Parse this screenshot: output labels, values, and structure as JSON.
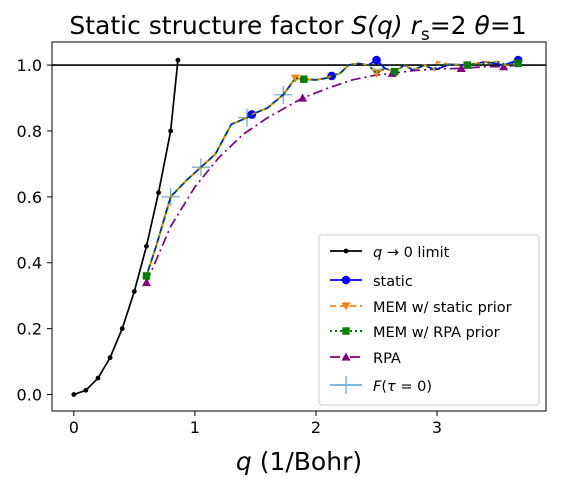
{
  "chart_data": {
    "type": "line",
    "title_plain": "Static structure factor ",
    "title_italic": "S(q)",
    "title_rs_italic": "r",
    "title_rs_sub": "s",
    "title_rs_value": "=2 ",
    "title_theta_italic": "θ",
    "title_theta_value": "=1",
    "xlabel_italic": "q",
    "xlabel_rest": " (1/Bohr)",
    "ylabel": "",
    "xlim": [
      -0.18,
      3.9
    ],
    "ylim": [
      -0.05,
      1.07
    ],
    "xticks": [
      0,
      1,
      2,
      3
    ],
    "yticks": [
      0.0,
      0.2,
      0.4,
      0.6,
      0.8,
      1.0
    ],
    "xtick_labels": [
      "0",
      "1",
      "2",
      "3"
    ],
    "ytick_labels": [
      "0.0",
      "0.2",
      "0.4",
      "0.6",
      "0.8",
      "1.0"
    ],
    "reference_line": {
      "y": 1.0,
      "color": "#000000"
    },
    "grid": false,
    "legend_position": "lower-right",
    "series": [
      {
        "key": "limit",
        "legend": "q → 0 limit",
        "color": "#000000",
        "dash": "",
        "marker": "dot",
        "x": [
          0.0,
          0.1,
          0.2,
          0.3,
          0.4,
          0.5,
          0.6,
          0.7,
          0.8,
          0.86
        ],
        "y": [
          0.0,
          0.013,
          0.05,
          0.112,
          0.2,
          0.313,
          0.45,
          0.613,
          0.8,
          1.015
        ]
      },
      {
        "key": "static",
        "legend": "static",
        "color": "#0000ff",
        "dash": "",
        "marker": "circle",
        "marker_idx": [
          8,
          15,
          20,
          31
        ],
        "x": [
          0.6,
          0.68,
          0.8,
          0.93,
          1.05,
          1.17,
          1.3,
          1.43,
          1.47,
          1.6,
          1.73,
          1.83,
          1.9,
          2.0,
          2.08,
          2.13,
          2.2,
          2.27,
          2.35,
          2.43,
          2.5,
          2.57,
          2.65,
          2.73,
          2.8,
          2.9,
          2.98,
          3.1,
          3.25,
          3.4,
          3.55,
          3.67
        ],
        "y": [
          0.36,
          0.45,
          0.6,
          0.65,
          0.69,
          0.73,
          0.82,
          0.84,
          0.85,
          0.87,
          0.91,
          0.96,
          0.957,
          0.955,
          0.96,
          0.967,
          0.975,
          1.0,
          1.005,
          1.0,
          1.015,
          0.99,
          0.98,
          1.0,
          0.985,
          1.0,
          0.985,
          1.002,
          1.0,
          1.01,
          1.0,
          1.015
        ]
      },
      {
        "key": "mem_static",
        "legend": "MEM w/ static prior",
        "color": "#ff7f0e",
        "dash": "6,4",
        "marker": "triangle-down",
        "marker_idx": [
          11,
          20,
          29,
          34
        ],
        "x": [
          0.6,
          0.68,
          0.8,
          0.93,
          1.05,
          1.17,
          1.3,
          1.43,
          1.47,
          1.6,
          1.73,
          1.83,
          1.9,
          2.0,
          2.08,
          2.13,
          2.2,
          2.27,
          2.35,
          2.43,
          2.5,
          2.57,
          2.65,
          2.73,
          2.8,
          2.9,
          2.98,
          3.0,
          3.1,
          3.25,
          3.4,
          3.5,
          3.55,
          3.6,
          3.67
        ],
        "y": [
          0.36,
          0.45,
          0.6,
          0.65,
          0.69,
          0.73,
          0.82,
          0.84,
          0.85,
          0.87,
          0.91,
          0.96,
          0.957,
          0.955,
          0.96,
          0.967,
          0.975,
          1.0,
          1.005,
          1.0,
          0.975,
          0.99,
          0.98,
          1.0,
          0.985,
          1.0,
          0.985,
          1.01,
          1.002,
          1.0,
          1.01,
          1.01,
          1.0,
          1.0,
          1.005
        ]
      },
      {
        "key": "mem_rpa",
        "legend": "MEM w/ RPA prior",
        "color": "#008000",
        "dash": "2,3",
        "marker": "square",
        "marker_idx": [
          0,
          12,
          22,
          29,
          33
        ],
        "x": [
          0.6,
          0.68,
          0.8,
          0.93,
          1.05,
          1.17,
          1.3,
          1.43,
          1.47,
          1.6,
          1.73,
          1.83,
          1.9,
          2.0,
          2.08,
          2.13,
          2.2,
          2.27,
          2.35,
          2.43,
          2.5,
          2.57,
          2.65,
          2.73,
          2.8,
          2.9,
          2.98,
          3.0,
          3.1,
          3.25,
          3.4,
          3.5,
          3.55,
          3.67
        ],
        "y": [
          0.36,
          0.45,
          0.6,
          0.65,
          0.69,
          0.73,
          0.82,
          0.84,
          0.85,
          0.87,
          0.91,
          0.96,
          0.957,
          0.955,
          0.96,
          0.967,
          0.975,
          1.0,
          1.005,
          1.0,
          0.975,
          0.99,
          0.98,
          1.0,
          0.985,
          1.0,
          0.985,
          1.0,
          1.002,
          1.0,
          1.005,
          1.01,
          1.0,
          1.005
        ]
      },
      {
        "key": "rpa",
        "legend": "RPA",
        "color": "#800080",
        "dash": "10,4,2,4",
        "marker": "triangle-up",
        "marker_idx": [
          0,
          6,
          10,
          13,
          15
        ],
        "x": [
          0.6,
          0.8,
          1.0,
          1.2,
          1.4,
          1.6,
          1.89,
          2.1,
          2.3,
          2.5,
          2.63,
          2.8,
          3.0,
          3.2,
          3.4,
          3.55,
          3.67
        ],
        "y": [
          0.34,
          0.51,
          0.63,
          0.72,
          0.79,
          0.84,
          0.9,
          0.93,
          0.955,
          0.97,
          0.975,
          0.983,
          0.988,
          0.99,
          0.995,
          0.995,
          1.0
        ],
        "markers_only_idx_note": ""
      },
      {
        "key": "ftau",
        "legend": "F(τ = 0)",
        "color": "#6baed6",
        "dash": "",
        "marker": "plus",
        "x": [
          0.6,
          0.68,
          0.8,
          0.93,
          1.05,
          1.17,
          1.3,
          1.43,
          1.47,
          1.6,
          1.73,
          1.83,
          1.9,
          2.0,
          2.08,
          2.13,
          2.2,
          2.27,
          2.35,
          2.43,
          2.5,
          2.57,
          2.65,
          2.73,
          2.8,
          2.9,
          2.98,
          3.1,
          3.25,
          3.4,
          3.55,
          3.67
        ],
        "y": [
          0.36,
          0.45,
          0.6,
          0.65,
          0.69,
          0.73,
          0.82,
          0.84,
          0.85,
          0.87,
          0.91,
          0.96,
          0.957,
          0.955,
          0.96,
          0.967,
          0.975,
          1.0,
          1.005,
          1.0,
          0.985,
          0.99,
          0.98,
          1.0,
          0.985,
          1.0,
          0.985,
          1.002,
          1.0,
          1.01,
          1.0,
          1.01
        ]
      }
    ],
    "legend_entries": {
      "limit_italic": "q",
      "limit_rest": " → 0 limit",
      "static": "static",
      "mem_static": "MEM w/ static prior",
      "mem_rpa": "MEM w/ RPA prior",
      "rpa": "RPA",
      "ftau_italic": "F",
      "ftau_paren_open": "(",
      "ftau_tau": "τ",
      "ftau_rest": " = 0)"
    }
  }
}
